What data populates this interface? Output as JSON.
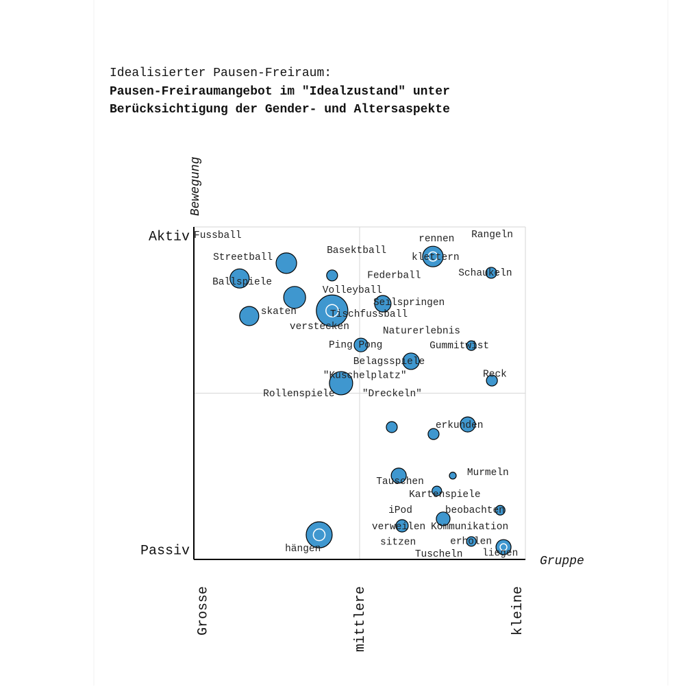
{
  "chart_data": {
    "type": "bubble",
    "title": "Idealisierter Pausen-Freiraum:",
    "subtitle": [
      "Pausen-Freiraumangebot im \"Idealzustand\" unter",
      "Berücksichtigung der Gender- und Altersaspekte"
    ],
    "x_label": "Gruppe",
    "y_label": "Bewegung",
    "xlim": [
      0,
      10
    ],
    "ylim": [
      0,
      10
    ],
    "xticks": [
      {
        "value": 0,
        "label": "Grosse"
      },
      {
        "value": 5,
        "label": "mittlere"
      },
      {
        "value": 10,
        "label": "kleine"
      }
    ],
    "yticks": [
      {
        "value": 0,
        "label": "Passiv"
      },
      {
        "value": 10,
        "label": "Aktiv"
      }
    ],
    "grid": true,
    "series": [
      {
        "color": "#3f97cf",
        "x": [
          2.79,
          1.38,
          3.04,
          1.67,
          4.17,
          4.17,
          5.7,
          7.21,
          8.97,
          5.04,
          8.37,
          6.55,
          4.44,
          8.99,
          5.97,
          7.23,
          8.26,
          6.18,
          7.81,
          7.33,
          9.24,
          7.52,
          6.28,
          8.37,
          9.34,
          3.78
        ],
        "values": [
          8.91,
          8.45,
          7.88,
          7.32,
          8.54,
          7.48,
          7.69,
          9.11,
          8.62,
          6.45,
          6.43,
          5.96,
          5.3,
          5.38,
          3.98,
          3.77,
          4.06,
          2.52,
          2.52,
          2.06,
          1.48,
          1.22,
          1.01,
          0.54,
          0.37,
          0.74
        ],
        "sizes": [
          15,
          14,
          16,
          14,
          8,
          23,
          12,
          15,
          8,
          10,
          7,
          12,
          17,
          8,
          8,
          8,
          11,
          11,
          5,
          7,
          7,
          10,
          9,
          7,
          11,
          19
        ],
        "rings": [
          false,
          false,
          false,
          false,
          false,
          true,
          false,
          true,
          false,
          false,
          false,
          false,
          false,
          false,
          false,
          false,
          false,
          false,
          false,
          false,
          false,
          false,
          false,
          false,
          true,
          true
        ]
      }
    ],
    "labels": [
      {
        "text": "Fussball",
        "x": 0.0,
        "y": 9.75
      },
      {
        "text": "Streetball",
        "x": 0.58,
        "y": 9.09
      },
      {
        "text": "Ballspiele",
        "x": 0.56,
        "y": 8.35
      },
      {
        "text": "skaten",
        "x": 2.02,
        "y": 7.46
      },
      {
        "text": "Basektball",
        "x": 4.01,
        "y": 9.3
      },
      {
        "text": "Federball",
        "x": 5.23,
        "y": 8.54
      },
      {
        "text": "Volleyball",
        "x": 3.88,
        "y": 8.1
      },
      {
        "text": "Seilspringen",
        "x": 5.41,
        "y": 7.73
      },
      {
        "text": "Tischfussball",
        "x": 4.11,
        "y": 7.38
      },
      {
        "text": "verstecken",
        "x": 2.89,
        "y": 7.01
      },
      {
        "text": "rennen",
        "x": 6.78,
        "y": 9.65
      },
      {
        "text": "klettern",
        "x": 6.57,
        "y": 9.09
      },
      {
        "text": "Rangeln",
        "x": 8.37,
        "y": 9.77
      },
      {
        "text": "Schaukeln",
        "x": 7.98,
        "y": 8.62
      },
      {
        "text": "Naturerlebnis",
        "x": 5.7,
        "y": 6.87
      },
      {
        "text": "Ping Pong",
        "x": 4.07,
        "y": 6.45
      },
      {
        "text": "Gummitwist",
        "x": 7.11,
        "y": 6.43
      },
      {
        "text": "Belagsspiele",
        "x": 4.81,
        "y": 5.96
      },
      {
        "text": "\"Kuschelplatz\"",
        "x": 3.9,
        "y": 5.53
      },
      {
        "text": "Reck",
        "x": 8.72,
        "y": 5.57
      },
      {
        "text": "Rollenspiele",
        "x": 2.09,
        "y": 4.99
      },
      {
        "text": "\"Dreckeln\"",
        "x": 5.08,
        "y": 4.99
      },
      {
        "text": "erkunden",
        "x": 7.29,
        "y": 4.04
      },
      {
        "text": "Murmeln",
        "x": 8.24,
        "y": 2.62
      },
      {
        "text": "Tauschen",
        "x": 5.5,
        "y": 2.35
      },
      {
        "text": "Kartenspiele",
        "x": 6.49,
        "y": 1.96
      },
      {
        "text": "iPod",
        "x": 5.87,
        "y": 1.48
      },
      {
        "text": "beobachten",
        "x": 7.58,
        "y": 1.48
      },
      {
        "text": "verweilen",
        "x": 5.37,
        "y": 0.99
      },
      {
        "text": "Kommunikation",
        "x": 7.15,
        "y": 0.99
      },
      {
        "text": "erholen",
        "x": 7.73,
        "y": 0.54
      },
      {
        "text": "sitzen",
        "x": 5.62,
        "y": 0.52
      },
      {
        "text": "liegen",
        "x": 8.7,
        "y": 0.19
      },
      {
        "text": "Tuscheln",
        "x": 6.67,
        "y": 0.16
      },
      {
        "text": "hängen",
        "x": 2.75,
        "y": 0.33
      }
    ]
  }
}
